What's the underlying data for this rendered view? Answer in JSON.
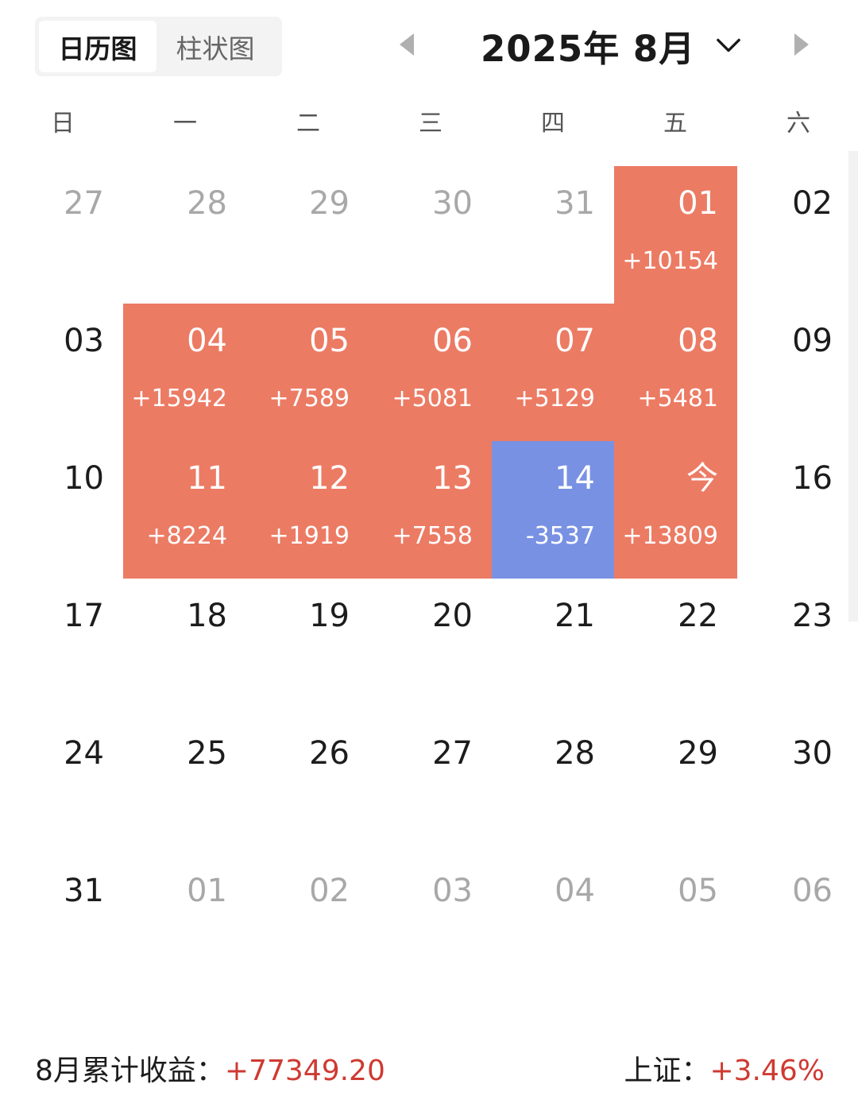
{
  "toggle": {
    "calendar_label": "日历图",
    "bar_label": "柱状图",
    "active": "calendar"
  },
  "header": {
    "month_title": "2025年 8月",
    "icons": {
      "prev": "caret-left-icon",
      "next": "caret-right-icon",
      "dropdown": "chevron-down-icon"
    }
  },
  "weekdays": [
    "日",
    "一",
    "二",
    "三",
    "四",
    "五",
    "六"
  ],
  "colors": {
    "gain": "#ec7b64",
    "loss": "#7891e3",
    "positive_text": "#cf3a32"
  },
  "weeks": [
    [
      {
        "day": "27",
        "month": "prev"
      },
      {
        "day": "28",
        "month": "prev"
      },
      {
        "day": "29",
        "month": "prev"
      },
      {
        "day": "30",
        "month": "prev"
      },
      {
        "day": "31",
        "month": "prev"
      },
      {
        "day": "01",
        "month": "current",
        "pl": "+10154",
        "status": "gain"
      },
      {
        "day": "02",
        "month": "current"
      }
    ],
    [
      {
        "day": "03",
        "month": "current"
      },
      {
        "day": "04",
        "month": "current",
        "pl": "+15942",
        "status": "gain"
      },
      {
        "day": "05",
        "month": "current",
        "pl": "+7589",
        "status": "gain"
      },
      {
        "day": "06",
        "month": "current",
        "pl": "+5081",
        "status": "gain"
      },
      {
        "day": "07",
        "month": "current",
        "pl": "+5129",
        "status": "gain"
      },
      {
        "day": "08",
        "month": "current",
        "pl": "+5481",
        "status": "gain"
      },
      {
        "day": "09",
        "month": "current"
      }
    ],
    [
      {
        "day": "10",
        "month": "current"
      },
      {
        "day": "11",
        "month": "current",
        "pl": "+8224",
        "status": "gain"
      },
      {
        "day": "12",
        "month": "current",
        "pl": "+1919",
        "status": "gain"
      },
      {
        "day": "13",
        "month": "current",
        "pl": "+7558",
        "status": "gain"
      },
      {
        "day": "14",
        "month": "current",
        "pl": "-3537",
        "status": "loss"
      },
      {
        "day": "今",
        "month": "current",
        "pl": "+13809",
        "status": "gain"
      },
      {
        "day": "16",
        "month": "current"
      }
    ],
    [
      {
        "day": "17",
        "month": "current"
      },
      {
        "day": "18",
        "month": "current"
      },
      {
        "day": "19",
        "month": "current"
      },
      {
        "day": "20",
        "month": "current"
      },
      {
        "day": "21",
        "month": "current"
      },
      {
        "day": "22",
        "month": "current"
      },
      {
        "day": "23",
        "month": "current"
      }
    ],
    [
      {
        "day": "24",
        "month": "current"
      },
      {
        "day": "25",
        "month": "current"
      },
      {
        "day": "26",
        "month": "current"
      },
      {
        "day": "27",
        "month": "current"
      },
      {
        "day": "28",
        "month": "current"
      },
      {
        "day": "29",
        "month": "current"
      },
      {
        "day": "30",
        "month": "current"
      }
    ],
    [
      {
        "day": "31",
        "month": "current"
      },
      {
        "day": "01",
        "month": "next"
      },
      {
        "day": "02",
        "month": "next"
      },
      {
        "day": "03",
        "month": "next"
      },
      {
        "day": "04",
        "month": "next"
      },
      {
        "day": "05",
        "month": "next"
      },
      {
        "day": "06",
        "month": "next"
      }
    ]
  ],
  "footer": {
    "monthly_label": "8月累计收益：",
    "monthly_value": "+77349.20",
    "index_label": "上证：",
    "index_value": "+3.46%"
  }
}
